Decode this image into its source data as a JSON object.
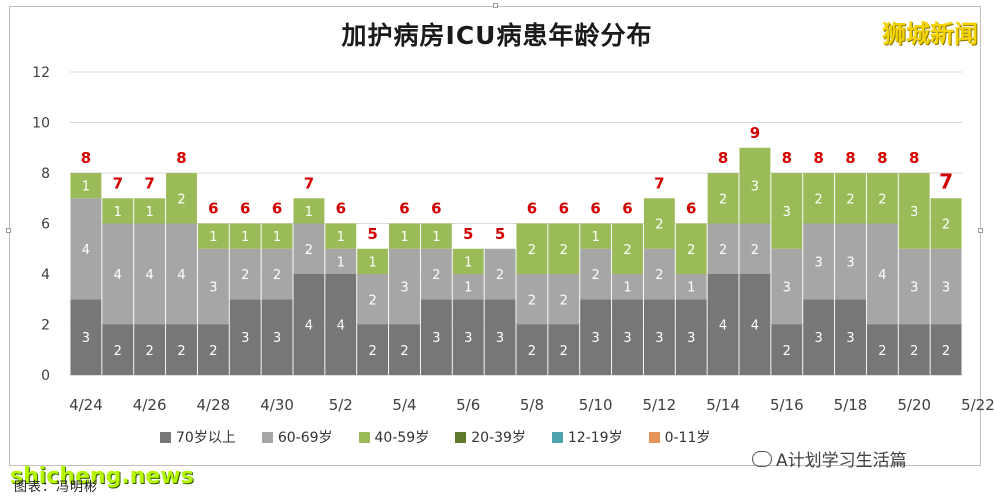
{
  "title": "加护病房ICU病患年龄分布",
  "brand": "狮城新闻",
  "wechat_tag": "A计划学习生活篇",
  "watermark": "shicheng.news",
  "caption": "图表：冯明彬",
  "colors": {
    "70岁以上": "#777777",
    "60-69岁": "#a6a6a6",
    "40-59岁": "#9bbb59",
    "20-39岁": "#5f7a2c",
    "12-19岁": "#4fa3ae",
    "0-11岁": "#e6935a",
    "total_label": "#d40000",
    "grid": "#d9d9d9"
  },
  "legend": [
    "70岁以上",
    "60-69岁",
    "40-59岁",
    "20-39岁",
    "12-19岁",
    "0-11岁"
  ],
  "chart_data": {
    "type": "bar",
    "stacked": true,
    "title": "加护病房ICU病患年龄分布",
    "categories": [
      "4/24",
      "4/25",
      "4/26",
      "4/27",
      "4/28",
      "4/29",
      "4/30",
      "5/1",
      "5/2",
      "5/3",
      "5/4",
      "5/5",
      "5/6",
      "5/7",
      "5/8",
      "5/9",
      "5/10",
      "5/11",
      "5/12",
      "5/13",
      "5/14",
      "5/15",
      "5/16",
      "5/17",
      "5/18",
      "5/19",
      "5/20",
      "5/21"
    ],
    "x_tick_labels": [
      "4/24",
      "4/26",
      "4/28",
      "4/30",
      "5/2",
      "5/4",
      "5/6",
      "5/8",
      "5/10",
      "5/12",
      "5/14",
      "5/16",
      "5/18",
      "5/20",
      "5/22"
    ],
    "series": [
      {
        "name": "70岁以上",
        "values": [
          3,
          2,
          2,
          2,
          2,
          3,
          3,
          4,
          4,
          2,
          2,
          3,
          3,
          3,
          2,
          2,
          3,
          3,
          3,
          3,
          4,
          4,
          2,
          3,
          3,
          2,
          2,
          2
        ]
      },
      {
        "name": "60-69岁",
        "values": [
          4,
          4,
          4,
          4,
          3,
          2,
          2,
          2,
          1,
          2,
          3,
          2,
          1,
          2,
          2,
          2,
          2,
          1,
          2,
          1,
          2,
          2,
          3,
          3,
          3,
          4,
          3,
          3
        ]
      },
      {
        "name": "40-59岁",
        "values": [
          1,
          1,
          1,
          2,
          1,
          1,
          1,
          1,
          1,
          1,
          1,
          1,
          1,
          0,
          2,
          2,
          1,
          2,
          2,
          2,
          2,
          3,
          3,
          2,
          2,
          2,
          3,
          2
        ]
      },
      {
        "name": "20-39岁",
        "values": [
          0,
          0,
          0,
          0,
          0,
          0,
          0,
          0,
          0,
          0,
          0,
          0,
          0,
          0,
          0,
          0,
          0,
          0,
          0,
          0,
          0,
          0,
          0,
          0,
          0,
          0,
          0,
          0
        ]
      },
      {
        "name": "12-19岁",
        "values": [
          0,
          0,
          0,
          0,
          0,
          0,
          0,
          0,
          0,
          0,
          0,
          0,
          0,
          0,
          0,
          0,
          0,
          0,
          0,
          0,
          0,
          0,
          0,
          0,
          0,
          0,
          0,
          0
        ]
      },
      {
        "name": "0-11岁",
        "values": [
          0,
          0,
          0,
          0,
          0,
          0,
          0,
          0,
          0,
          0,
          0,
          0,
          0,
          0,
          0,
          0,
          0,
          0,
          0,
          0,
          0,
          0,
          0,
          0,
          0,
          0,
          0,
          0
        ]
      }
    ],
    "totals": [
      8,
      7,
      7,
      8,
      6,
      6,
      6,
      7,
      6,
      5,
      6,
      6,
      5,
      5,
      6,
      6,
      6,
      6,
      7,
      6,
      8,
      9,
      8,
      8,
      8,
      8,
      8,
      7
    ],
    "y_ticks": [
      0,
      2,
      4,
      6,
      8,
      10,
      12
    ],
    "ylim": [
      0,
      12
    ],
    "grid": true,
    "legend_position": "bottom"
  }
}
